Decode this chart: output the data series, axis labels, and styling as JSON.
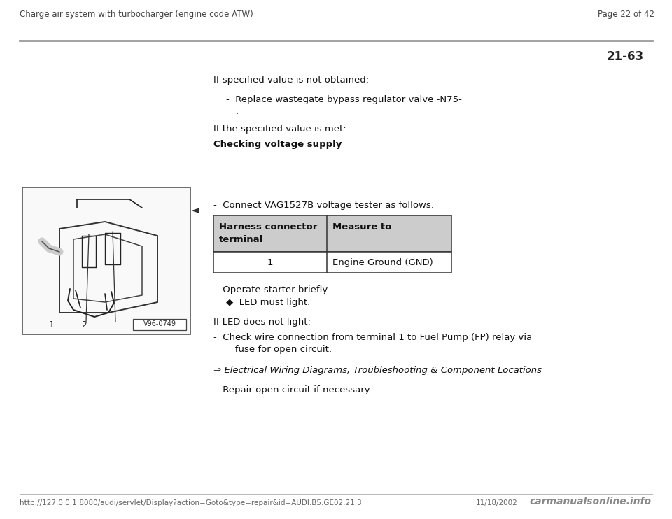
{
  "header_left": "Charge air system with turbocharger (engine code ATW)",
  "header_right": "Page 22 of 42",
  "page_number": "21-63",
  "background_color": "#ffffff",
  "header_line_color": "#999999",
  "footer_url": "http://127.0.0.1:8080/audi/servlet/Display?action=Goto&type=repair&id=AUDI.B5.GE02.21.3",
  "footer_date": "11/18/2002",
  "footer_watermark": "carmanualsonline.info",
  "section1_title": "If specified value is not obtained:",
  "bullet1": "-  Replace wastegate bypass regulator valve -N75-",
  "bullet1b": ".",
  "section2_title": "If the specified value is met:",
  "section3_title": "Checking voltage supply",
  "connect_text": "-  Connect VAG1527B voltage tester as follows:",
  "table_header_col2": "Measure to",
  "table_data_col1": "1",
  "table_data_col2": "Engine Ground (GND)",
  "table_header_bg": "#cccccc",
  "table_border_color": "#333333",
  "bullet_operate": "-  Operate starter briefly.",
  "bullet_led": "◆  LED must light.",
  "section4_title": "If LED does not light:",
  "bullet_check1": "-  Check wire connection from terminal 1 to Fuel Pump (FP) relay via",
  "bullet_check2": "   fuse for open circuit:",
  "bullet_electrical": "⇒ Electrical Wiring Diagrams, Troubleshooting & Component Locations",
  "bullet_repair": "-  Repair open circuit if necessary.",
  "header_fontsize": 8.5,
  "body_fontsize": 9.5,
  "footer_fontsize": 7.5,
  "page_num_fontsize": 12
}
